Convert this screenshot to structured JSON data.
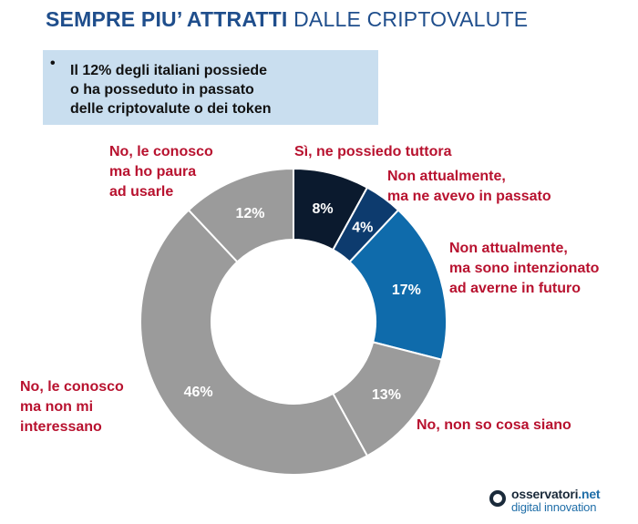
{
  "header": {
    "title_bold": "SEMPRE PIU’ ATTRATTI",
    "title_rest": "DALLE CRIPTOVALUTE"
  },
  "callout": {
    "bullet": "•",
    "line1": "Il 12% degli italiani possiede",
    "line2": "o ha posseduto in passato",
    "line3": "delle criptovalute o dei token"
  },
  "logo": {
    "line1_a": "osservatori",
    "line1_b": ".net",
    "line2": "digital innovation"
  },
  "colors": {
    "navy": "#0b1a2e",
    "dark_blue": "#0d3b6e",
    "blue": "#0f6bab",
    "gray": "#9b9b9b",
    "label_red": "#b8122f",
    "title_blue": "#1f4e8c"
  },
  "chart_data": {
    "type": "pie",
    "categories": [
      "Sì, ne possiedo tuttora",
      "Non attualmente, ma ne avevo in passato",
      "Non attualmente, ma sono intenzionato ad averne in futuro",
      "No, non so cosa siano",
      "No, le conosco ma non mi interessano",
      "No, le conosco ma ho paura ad usarle"
    ],
    "values": [
      8,
      4,
      17,
      13,
      46,
      12
    ],
    "value_labels": [
      "8%",
      "4%",
      "17%",
      "13%",
      "46%",
      "12%"
    ],
    "slice_colors": [
      "#0b1a2e",
      "#0d3b6e",
      "#0f6bab",
      "#9b9b9b",
      "#9b9b9b",
      "#9b9b9b"
    ],
    "label_lines": [
      [
        "Sì, ne possiedo tuttora"
      ],
      [
        "Non attualmente,",
        "ma ne avevo in passato"
      ],
      [
        "Non attualmente,",
        "ma sono intenzionato",
        "ad averne in futuro"
      ],
      [
        "No, non so cosa siano"
      ],
      [
        "No, le conosco",
        "ma non mi",
        "interessano"
      ],
      [
        "No, le conosco",
        "ma ho paura",
        "ad usarle"
      ]
    ],
    "donut": true
  }
}
